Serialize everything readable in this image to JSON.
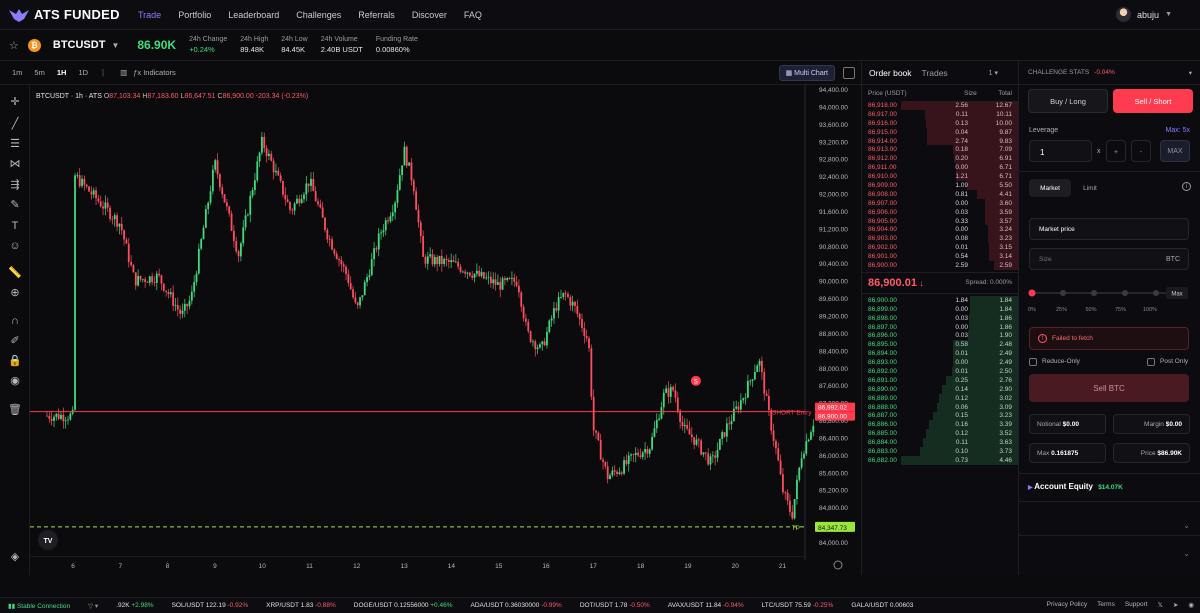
{
  "nav": {
    "brand": "ATS FUNDED",
    "links": [
      "Trade",
      "Portfolio",
      "Leaderboard",
      "Challenges",
      "Referrals",
      "Discover",
      "FAQ"
    ],
    "active": "Trade",
    "username": "abuju"
  },
  "ticker": {
    "symbol": "BTCUSDT",
    "coin_letter": "₿",
    "last_price": "86.90K",
    "stats": [
      {
        "k": "24h Change",
        "v": "+0.24%",
        "pos": true
      },
      {
        "k": "24h High",
        "v": "89.48K"
      },
      {
        "k": "24h Low",
        "v": "84.45K"
      },
      {
        "k": "24h Volume",
        "v": "2.40B USDT"
      },
      {
        "k": "Funding Rate",
        "v": "0.00860%"
      }
    ]
  },
  "chart": {
    "timeframes": [
      "1m",
      "5m",
      "1H",
      "1D"
    ],
    "active_tf": "1H",
    "indicators_label": "Indicators",
    "multi_chart": "Multi Chart",
    "legend": {
      "title": "BTCUSDT · 1h · ATS",
      "o": "87,103.34",
      "h": "87,183.60",
      "l": "86,647.51",
      "c": "86,900.00",
      "chg": "-203.34 (-0.23%)"
    },
    "price_axis": [
      "94,400.00",
      "94,000.00",
      "93,600.00",
      "93,200.00",
      "92,800.00",
      "92,400.00",
      "92,000.00",
      "91,600.00",
      "91,200.00",
      "90,800.00",
      "90,400.00",
      "90,000.00",
      "89,600.00",
      "89,200.00",
      "88,800.00",
      "88,400.00",
      "88,000.00",
      "87,600.00",
      "87,200.00",
      "86,800.00",
      "86,400.00",
      "86,000.00",
      "85,600.00",
      "85,200.00",
      "84,800.00",
      "84,400.00",
      "84,000.00"
    ],
    "x_axis": [
      "6",
      "7",
      "8",
      "9",
      "10",
      "11",
      "12",
      "13",
      "14",
      "15",
      "16",
      "17",
      "18",
      "19",
      "20",
      "21"
    ],
    "short_entry_label": "SHORT Entry",
    "short_entry_price": "86,992.02",
    "current_price_tag": "86,900.00",
    "tp_label": "TP",
    "tp_price": "84,347.73",
    "marker": "S",
    "tv_logo": "TV"
  },
  "orderbook": {
    "tabs": [
      "Order book",
      "Trades"
    ],
    "group": "1",
    "headers": [
      "Price (USDT)",
      "Size",
      "Total"
    ],
    "asks": [
      [
        "86,918.00",
        "2.56",
        "12.67"
      ],
      [
        "86,917.00",
        "0.11",
        "10.11"
      ],
      [
        "86,916.00",
        "0.13",
        "10.00"
      ],
      [
        "86,915.00",
        "0.04",
        "9.87"
      ],
      [
        "86,914.00",
        "2.74",
        "9.83"
      ],
      [
        "86,913.00",
        "0.18",
        "7.09"
      ],
      [
        "86,912.00",
        "0.20",
        "6.91"
      ],
      [
        "86,911.00",
        "0.00",
        "6.71"
      ],
      [
        "86,910.00",
        "1.21",
        "6.71"
      ],
      [
        "86,909.00",
        "1.09",
        "5.50"
      ],
      [
        "86,908.00",
        "0.81",
        "4.41"
      ],
      [
        "86,907.00",
        "0.00",
        "3.60"
      ],
      [
        "86,906.00",
        "0.03",
        "3.59"
      ],
      [
        "86,905.00",
        "0.33",
        "3.57"
      ],
      [
        "86,904.00",
        "0.00",
        "3.24"
      ],
      [
        "86,903.00",
        "0.08",
        "3.23"
      ],
      [
        "86,902.00",
        "0.01",
        "3.15"
      ],
      [
        "86,901.00",
        "0.54",
        "3.14"
      ],
      [
        "86,900.00",
        "2.59",
        "2.59"
      ]
    ],
    "mid_price": "86,900.01",
    "spread": "Spread: 0.000%",
    "bids": [
      [
        "86,900.00",
        "1.84",
        "1.84"
      ],
      [
        "86,899.00",
        "0.00",
        "1.84"
      ],
      [
        "86,898.00",
        "0.03",
        "1.86"
      ],
      [
        "86,897.00",
        "0.00",
        "1.86"
      ],
      [
        "86,896.00",
        "0.03",
        "1.90"
      ],
      [
        "86,895.00",
        "0.58",
        "2.48"
      ],
      [
        "86,894.00",
        "0.01",
        "2.49"
      ],
      [
        "86,893.00",
        "0.00",
        "2.49"
      ],
      [
        "86,892.00",
        "0.01",
        "2.50"
      ],
      [
        "86,891.00",
        "0.25",
        "2.76"
      ],
      [
        "86,890.00",
        "0.14",
        "2.90"
      ],
      [
        "86,889.00",
        "0.12",
        "3.02"
      ],
      [
        "86,888.00",
        "0.06",
        "3.09"
      ],
      [
        "86,887.00",
        "0.15",
        "3.23"
      ],
      [
        "86,886.00",
        "0.16",
        "3.39"
      ],
      [
        "86,885.00",
        "0.12",
        "3.52"
      ],
      [
        "86,884.00",
        "0.11",
        "3.63"
      ],
      [
        "86,883.00",
        "0.10",
        "3.73"
      ],
      [
        "86,882.00",
        "0.73",
        "4.46"
      ]
    ]
  },
  "panel": {
    "challenge_stats": "CHALLENGE STATS",
    "challenge_pct": "-0.04%",
    "buy_long": "Buy / Long",
    "sell_short": "Sell / Short",
    "leverage_label": "Leverage",
    "leverage_max": "Max: 5x",
    "leverage_value": "1",
    "times": "x",
    "plus": "+",
    "minus": "-",
    "max_btn": "MAX",
    "order_types": [
      "Market",
      "Limit"
    ],
    "market_price": "Market price",
    "size_placeholder": "Size",
    "size_unit": "BTC",
    "pct_labels": [
      "0%",
      "25%",
      "50%",
      "75%",
      "100%"
    ],
    "slider_max": "Max",
    "slider_fraction": 0,
    "error": "Failed to fetch",
    "reduce_only": "Reduce-Only",
    "post_only": "Post Only",
    "submit": "Sell BTC",
    "notional_label": "Notional",
    "notional": "$0.00",
    "margin_label": "Margin",
    "margin": "$0.00",
    "max_label": "Max",
    "max_value": "0.161875",
    "price_label": "Price",
    "price_value": "$86.90K",
    "equity_label": "Account Equity",
    "equity_value": "$14.07K"
  },
  "footer": {
    "connection": "Stable Connection",
    "items": [
      {
        "n": ".92K",
        "c": "+2.98%",
        "pos": true
      },
      {
        "n": "SOL/USDT",
        "v": "122.19",
        "c": "-0.92%"
      },
      {
        "n": "XRP/USDT",
        "v": "1.83",
        "c": "-0.88%"
      },
      {
        "n": "DOGE/USDT",
        "v": "0.12556000",
        "c": "+0.46%",
        "pos": true
      },
      {
        "n": "ADA/USDT",
        "v": "0.36030000",
        "c": "-0.99%"
      },
      {
        "n": "DOT/USDT",
        "v": "1.78",
        "c": "-0.50%"
      },
      {
        "n": "AVAX/USDT",
        "v": "11.84",
        "c": "-0.94%"
      },
      {
        "n": "LTC/USDT",
        "v": "75.59",
        "c": "-0.25%"
      },
      {
        "n": "GALA/USDT",
        "v": "0.00603"
      }
    ],
    "links": [
      "Privacy Policy",
      "Terms",
      "Support"
    ]
  },
  "colors": {
    "up": "#3fdc7e",
    "down": "#ff4d5e",
    "accent": "#8b7cff",
    "sell": "#ff3b4f",
    "tp": "#9ae63f"
  }
}
